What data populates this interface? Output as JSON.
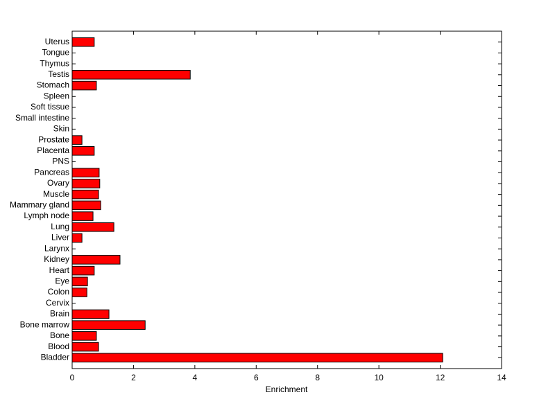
{
  "chart_data": {
    "type": "barh",
    "x_label": "Enrichment",
    "categories": [
      "Bladder",
      "Blood",
      "Bone",
      "Bone marrow",
      "Brain",
      "Cervix",
      "Colon",
      "Eye",
      "Heart",
      "Kidney",
      "Larynx",
      "Liver",
      "Lung",
      "Lymph node",
      "Mammary gland",
      "Muscle",
      "Ovary",
      "Pancreas",
      "PNS",
      "Placenta",
      "Prostate",
      "Skin",
      "Small intestine",
      "Soft tissue",
      "Spleen",
      "Stomach",
      "Testis",
      "Thymus",
      "Tongue",
      "Uterus"
    ],
    "values": [
      12.08,
      0.86,
      0.79,
      2.38,
      1.2,
      0,
      0.48,
      0.5,
      0.72,
      1.56,
      0,
      0.32,
      1.36,
      0.68,
      0.93,
      0.86,
      0.9,
      0.88,
      0,
      0.72,
      0.32,
      0,
      0,
      0,
      0,
      0.79,
      3.85,
      0,
      0,
      0.72
    ],
    "color": "#ff0000",
    "xlim": [
      0,
      14
    ],
    "xticks": [
      0,
      2,
      4,
      6,
      8,
      10,
      12,
      14
    ]
  }
}
